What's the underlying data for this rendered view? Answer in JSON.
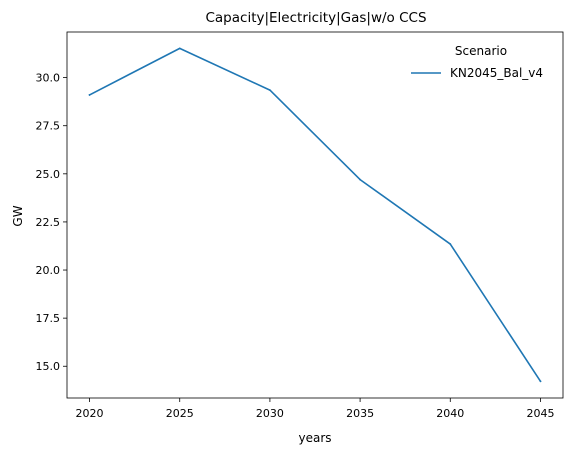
{
  "chart_data": {
    "type": "line",
    "title": "Capacity|Electricity|Gas|w/o CCS",
    "xlabel": "years",
    "ylabel": "GW",
    "x": [
      2020,
      2025,
      2030,
      2035,
      2040,
      2045
    ],
    "xticks": [
      "2020",
      "2025",
      "2030",
      "2035",
      "2040",
      "2045"
    ],
    "xlim": [
      2018.75,
      2046.25
    ],
    "yticks": [
      "15.0",
      "17.5",
      "20.0",
      "22.5",
      "25.0",
      "27.5",
      "30.0"
    ],
    "ylim": [
      13.35,
      32.37
    ],
    "grid": false,
    "legend": {
      "title": "Scenario",
      "placement": "top-right"
    },
    "series": [
      {
        "name": "KN2045_Bal_v4",
        "color": "#1f77b4",
        "values": [
          29.1,
          31.52,
          29.35,
          24.7,
          21.35,
          14.22
        ]
      }
    ]
  }
}
